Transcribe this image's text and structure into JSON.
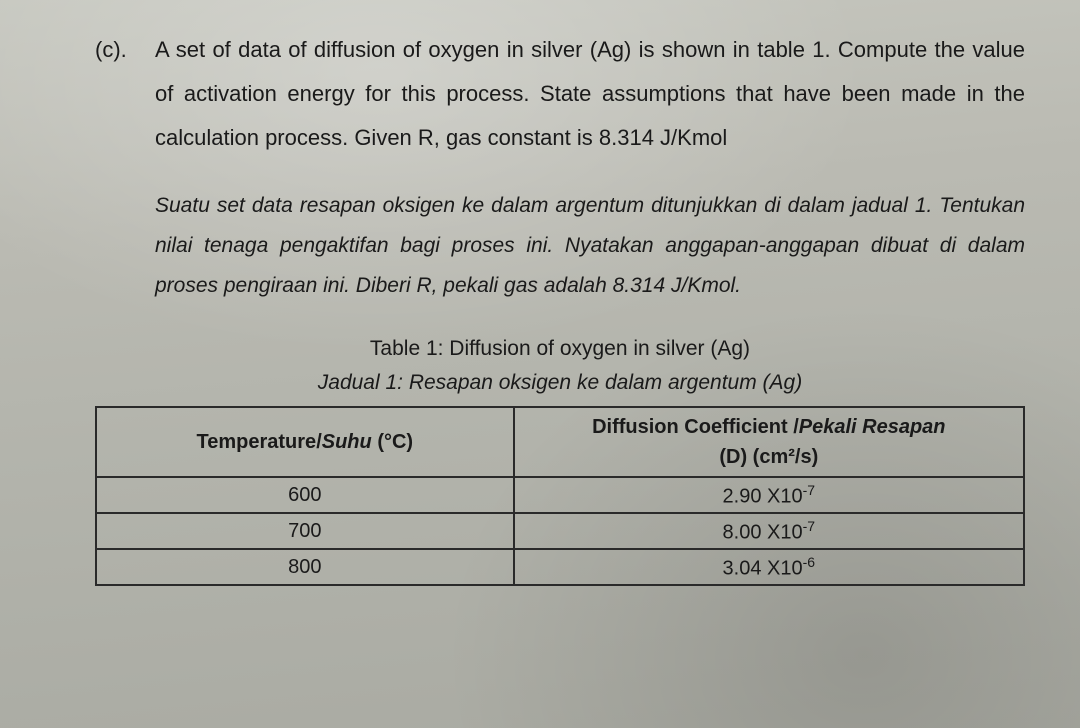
{
  "question": {
    "label": "(c).",
    "text_en": "A set of data of diffusion of oxygen in silver (Ag) is shown in table 1. Compute the value of activation energy for this process. State assumptions that have been made in the calculation process. Given R, gas constant is 8.314 J/Kmol",
    "text_ms": "Suatu set data resapan oksigen ke dalam argentum ditunjukkan di dalam jadual 1. Tentukan nilai tenaga pengaktifan bagi proses ini. Nyatakan anggapan-anggapan dibuat di dalam proses pengiraan ini. Diberi R, pekali gas adalah 8.314 J/Kmol."
  },
  "table": {
    "title_en": "Table 1: Diffusion of oxygen in silver (Ag)",
    "title_ms": "Jadual 1: Resapan oksigen ke dalam argentum (Ag)",
    "columns": [
      {
        "label_en": "Temperature",
        "label_ms": "Suhu",
        "unit": "(°C)"
      },
      {
        "label_en": "Diffusion Coefficient ",
        "label_ms": "Pekali Resapan",
        "symbol": "(D) (cm²/s)"
      }
    ],
    "rows": [
      {
        "temp": "600",
        "d_mantissa": "2.90",
        "d_exp": "-7"
      },
      {
        "temp": "700",
        "d_mantissa": "8.00",
        "d_exp": "-7"
      },
      {
        "temp": "800",
        "d_mantissa": "3.04",
        "d_exp": "-6"
      }
    ],
    "col_widths": [
      "45%",
      "55%"
    ],
    "border_color": "#2a2a2a",
    "header_fontsize": 20,
    "cell_fontsize": 20
  },
  "styling": {
    "body_fontsize": 22,
    "body_lineheight": 44,
    "translation_fontsize": 21,
    "translation_lineheight": 40,
    "page_bg_top": "#c6c7bf",
    "page_bg_bottom": "#a9aaa2",
    "text_color": "#1a1a1a"
  }
}
